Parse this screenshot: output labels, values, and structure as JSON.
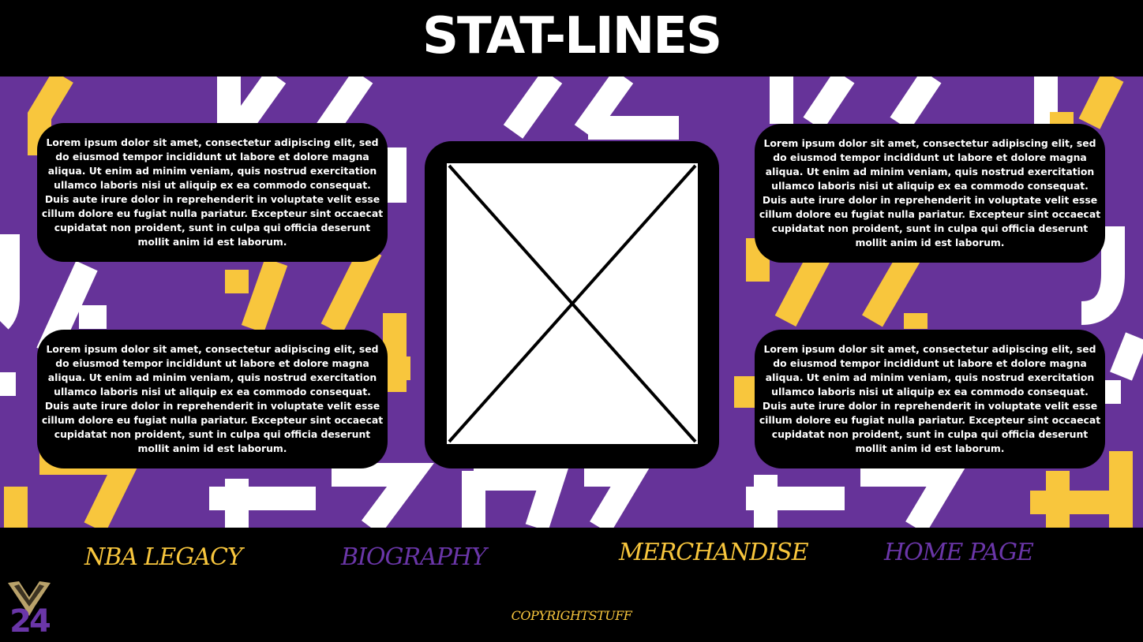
{
  "header": {
    "title": "STAT-LINES"
  },
  "cards": [
    {
      "text": "Lorem ipsum dolor sit amet, consectetur adipiscing elit, sed do eiusmod tempor incididunt ut labore et dolore magna aliqua. Ut enim ad minim veniam, quis nostrud exercitation ullamco laboris nisi ut aliquip ex ea commodo consequat. Duis aute irure dolor in reprehenderit in voluptate velit esse cillum dolore eu fugiat nulla pariatur. Excepteur sint occaecat cupidatat non proident, sunt in culpa qui officia deserunt mollit anim id est laborum."
    },
    {
      "text": "Lorem ipsum dolor sit amet, consectetur adipiscing elit, sed do eiusmod tempor incididunt ut labore et dolore magna aliqua. Ut enim ad minim veniam, quis nostrud exercitation ullamco laboris nisi ut aliquip ex ea commodo consequat. Duis aute irure dolor in reprehenderit in voluptate velit esse cillum dolore eu fugiat nulla pariatur. Excepteur sint occaecat cupidatat non proident, sunt in culpa qui officia deserunt mollit anim id est laborum."
    },
    {
      "text": "Lorem ipsum dolor sit amet, consectetur adipiscing elit, sed do eiusmod tempor incididunt ut labore et dolore magna aliqua. Ut enim ad minim veniam, quis nostrud exercitation ullamco laboris nisi ut aliquip ex ea commodo consequat. Duis aute irure dolor in reprehenderit in voluptate velit esse cillum dolore eu fugiat nulla pariatur. Excepteur sint occaecat cupidatat non proident, sunt in culpa qui officia deserunt mollit anim id est laborum."
    },
    {
      "text": "Lorem ipsum dolor sit amet, consectetur adipiscing elit, sed do eiusmod tempor incididunt ut labore et dolore magna aliqua. Ut enim ad minim veniam, quis nostrud exercitation ullamco laboris nisi ut aliquip ex ea commodo consequat. Duis aute irure dolor in reprehenderit in voluptate velit esse cillum dolore eu fugiat nulla pariatur. Excepteur sint occaecat cupidatat non proident, sunt in culpa qui officia deserunt mollit anim id est laborum."
    }
  ],
  "image_placeholder": {
    "icon": "image-placeholder-icon"
  },
  "nav": {
    "items": [
      {
        "label": "NBA LEGACY"
      },
      {
        "label": "BIOGRAPHY"
      },
      {
        "label": "MERCHANDISE"
      },
      {
        "label": "HOME PAGE"
      }
    ]
  },
  "footer": {
    "copyright": "COPYRIGHTSTUFF",
    "logo_digits": "24"
  },
  "colors": {
    "purple": "#663399",
    "gold": "#f8c63d",
    "white": "#ffffff",
    "black": "#000000"
  }
}
